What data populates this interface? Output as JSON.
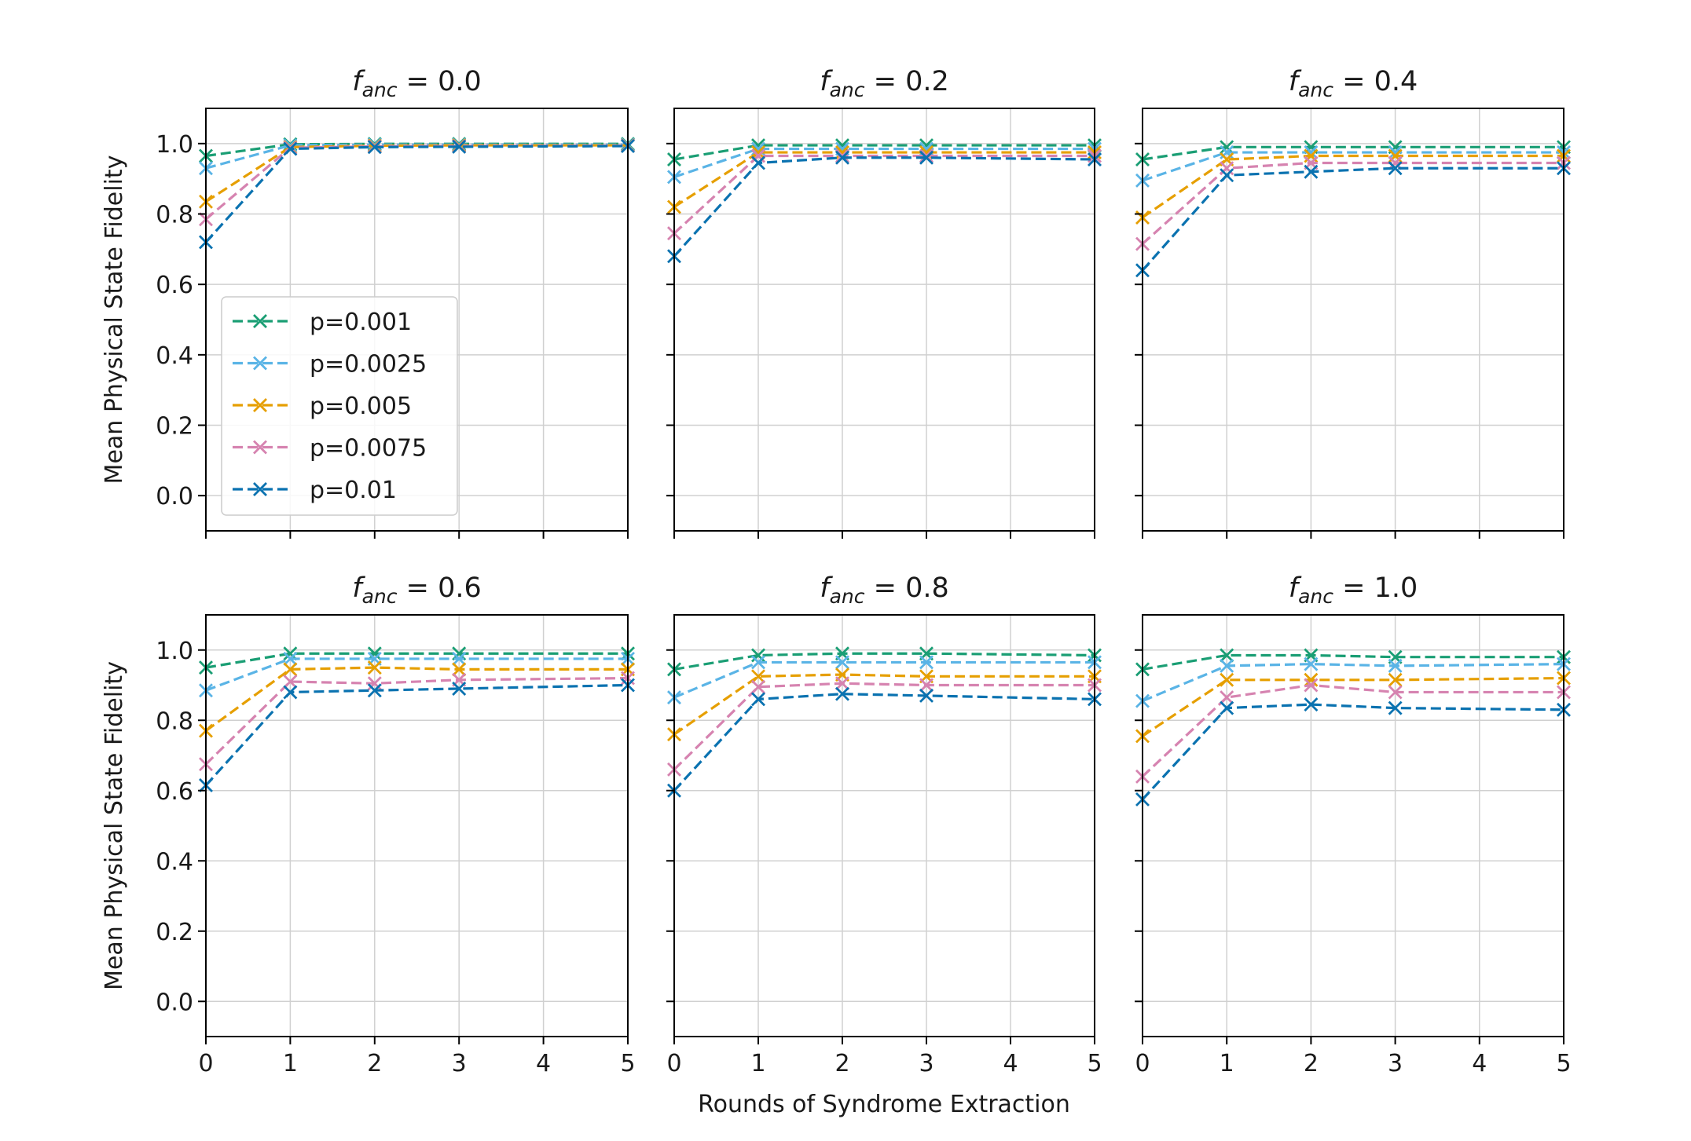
{
  "chart_data": {
    "type": "line",
    "layout": "2x3 subplots, shared x and y axes",
    "xlabel": "Rounds of Syndrome Extraction",
    "ylabel": "Mean Physical State Fidelity",
    "x": [
      0,
      1,
      2,
      3,
      4,
      5
    ],
    "xticks": [
      "0",
      "1",
      "2",
      "3",
      "4",
      "5"
    ],
    "xlim": [
      0,
      5
    ],
    "yticks": [
      "0.0",
      "0.2",
      "0.4",
      "0.6",
      "0.8",
      "1.0"
    ],
    "ylim": [
      -0.1,
      1.1
    ],
    "grid": true,
    "marker": "x",
    "linestyle": "dashed",
    "legend": {
      "location": "lower-left of first panel",
      "entries": [
        {
          "label": "p=0.001",
          "color": "#1a9e74"
        },
        {
          "label": "p=0.0025",
          "color": "#5ab4e6"
        },
        {
          "label": "p=0.005",
          "color": "#e69f00"
        },
        {
          "label": "p=0.0075",
          "color": "#d683b0"
        },
        {
          "label": "p=0.01",
          "color": "#0a72b0"
        }
      ]
    },
    "panels": [
      {
        "title_var": "f",
        "title_sub": "anc",
        "title_value": "= 0.0",
        "series": [
          {
            "name": "p=0.001",
            "x": [
              0,
              1,
              2,
              3,
              5
            ],
            "values": [
              0.965,
              0.998,
              0.999,
              0.999,
              0.999
            ]
          },
          {
            "name": "p=0.0025",
            "x": [
              0,
              1,
              2,
              3,
              5
            ],
            "values": [
              0.93,
              0.995,
              0.997,
              0.997,
              0.997
            ]
          },
          {
            "name": "p=0.005",
            "x": [
              0,
              1,
              2,
              3,
              5
            ],
            "values": [
              0.835,
              0.99,
              0.994,
              0.995,
              0.995
            ]
          },
          {
            "name": "p=0.0075",
            "x": [
              0,
              1,
              2,
              3,
              5
            ],
            "values": [
              0.785,
              0.988,
              0.992,
              0.993,
              0.994
            ]
          },
          {
            "name": "p=0.01",
            "x": [
              0,
              1,
              2,
              3,
              5
            ],
            "values": [
              0.72,
              0.985,
              0.99,
              0.991,
              0.993
            ]
          }
        ]
      },
      {
        "title_var": "f",
        "title_sub": "anc",
        "title_value": "= 0.2",
        "series": [
          {
            "name": "p=0.001",
            "x": [
              0,
              1,
              2,
              3,
              5
            ],
            "values": [
              0.955,
              0.995,
              0.995,
              0.995,
              0.995
            ]
          },
          {
            "name": "p=0.0025",
            "x": [
              0,
              1,
              2,
              3,
              5
            ],
            "values": [
              0.905,
              0.985,
              0.985,
              0.985,
              0.985
            ]
          },
          {
            "name": "p=0.005",
            "x": [
              0,
              1,
              2,
              3,
              5
            ],
            "values": [
              0.82,
              0.975,
              0.975,
              0.975,
              0.975
            ]
          },
          {
            "name": "p=0.0075",
            "x": [
              0,
              1,
              2,
              3,
              5
            ],
            "values": [
              0.745,
              0.965,
              0.965,
              0.965,
              0.965
            ]
          },
          {
            "name": "p=0.01",
            "x": [
              0,
              1,
              2,
              3,
              5
            ],
            "values": [
              0.68,
              0.945,
              0.96,
              0.96,
              0.955
            ]
          }
        ]
      },
      {
        "title_var": "f",
        "title_sub": "anc",
        "title_value": "= 0.4",
        "series": [
          {
            "name": "p=0.001",
            "x": [
              0,
              1,
              2,
              3,
              5
            ],
            "values": [
              0.955,
              0.99,
              0.99,
              0.99,
              0.99
            ]
          },
          {
            "name": "p=0.0025",
            "x": [
              0,
              1,
              2,
              3,
              5
            ],
            "values": [
              0.895,
              0.975,
              0.975,
              0.975,
              0.975
            ]
          },
          {
            "name": "p=0.005",
            "x": [
              0,
              1,
              2,
              3,
              5
            ],
            "values": [
              0.79,
              0.955,
              0.965,
              0.965,
              0.965
            ]
          },
          {
            "name": "p=0.0075",
            "x": [
              0,
              1,
              2,
              3,
              5
            ],
            "values": [
              0.715,
              0.93,
              0.945,
              0.945,
              0.945
            ]
          },
          {
            "name": "p=0.01",
            "x": [
              0,
              1,
              2,
              3,
              5
            ],
            "values": [
              0.64,
              0.91,
              0.92,
              0.93,
              0.93
            ]
          }
        ]
      },
      {
        "title_var": "f",
        "title_sub": "anc",
        "title_value": "= 0.6",
        "series": [
          {
            "name": "p=0.001",
            "x": [
              0,
              1,
              2,
              3,
              5
            ],
            "values": [
              0.95,
              0.99,
              0.99,
              0.99,
              0.99
            ]
          },
          {
            "name": "p=0.0025",
            "x": [
              0,
              1,
              2,
              3,
              5
            ],
            "values": [
              0.885,
              0.975,
              0.975,
              0.975,
              0.975
            ]
          },
          {
            "name": "p=0.005",
            "x": [
              0,
              1,
              2,
              3,
              5
            ],
            "values": [
              0.77,
              0.945,
              0.95,
              0.945,
              0.945
            ]
          },
          {
            "name": "p=0.0075",
            "x": [
              0,
              1,
              2,
              3,
              5
            ],
            "values": [
              0.675,
              0.91,
              0.905,
              0.915,
              0.92
            ]
          },
          {
            "name": "p=0.01",
            "x": [
              0,
              1,
              2,
              3,
              5
            ],
            "values": [
              0.615,
              0.88,
              0.885,
              0.89,
              0.9
            ]
          }
        ]
      },
      {
        "title_var": "f",
        "title_sub": "anc",
        "title_value": "= 0.8",
        "series": [
          {
            "name": "p=0.001",
            "x": [
              0,
              1,
              2,
              3,
              5
            ],
            "values": [
              0.945,
              0.985,
              0.99,
              0.99,
              0.985
            ]
          },
          {
            "name": "p=0.0025",
            "x": [
              0,
              1,
              2,
              3,
              5
            ],
            "values": [
              0.865,
              0.965,
              0.965,
              0.965,
              0.965
            ]
          },
          {
            "name": "p=0.005",
            "x": [
              0,
              1,
              2,
              3,
              5
            ],
            "values": [
              0.76,
              0.925,
              0.93,
              0.925,
              0.925
            ]
          },
          {
            "name": "p=0.0075",
            "x": [
              0,
              1,
              2,
              3,
              5
            ],
            "values": [
              0.66,
              0.895,
              0.905,
              0.9,
              0.9
            ]
          },
          {
            "name": "p=0.01",
            "x": [
              0,
              1,
              2,
              3,
              5
            ],
            "values": [
              0.6,
              0.86,
              0.875,
              0.87,
              0.86
            ]
          }
        ]
      },
      {
        "title_var": "f",
        "title_sub": "anc",
        "title_value": "= 1.0",
        "series": [
          {
            "name": "p=0.001",
            "x": [
              0,
              1,
              2,
              3,
              5
            ],
            "values": [
              0.945,
              0.985,
              0.985,
              0.98,
              0.98
            ]
          },
          {
            "name": "p=0.0025",
            "x": [
              0,
              1,
              2,
              3,
              5
            ],
            "values": [
              0.855,
              0.955,
              0.96,
              0.955,
              0.96
            ]
          },
          {
            "name": "p=0.005",
            "x": [
              0,
              1,
              2,
              3,
              5
            ],
            "values": [
              0.755,
              0.915,
              0.915,
              0.915,
              0.92
            ]
          },
          {
            "name": "p=0.0075",
            "x": [
              0,
              1,
              2,
              3,
              5
            ],
            "values": [
              0.64,
              0.865,
              0.9,
              0.88,
              0.88
            ]
          },
          {
            "name": "p=0.01",
            "x": [
              0,
              1,
              2,
              3,
              5
            ],
            "values": [
              0.575,
              0.835,
              0.845,
              0.835,
              0.83
            ]
          }
        ]
      }
    ]
  }
}
